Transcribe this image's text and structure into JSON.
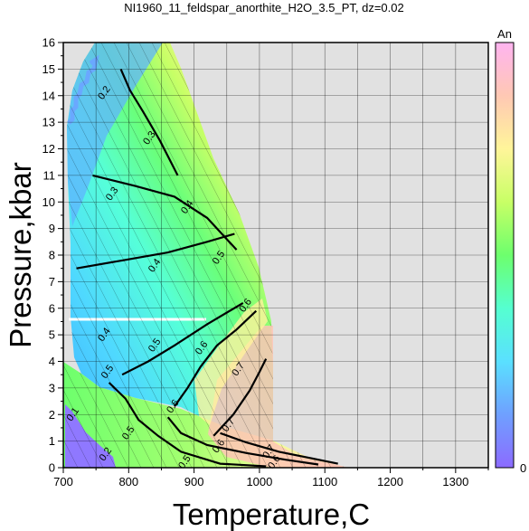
{
  "chart_data": {
    "type": "heatmap",
    "title": "NI1960_11_feldspar_anorthite_H2O_3.5_PT, dz=0.02",
    "xlabel": "Temperature,C",
    "ylabel": "Pressure,kbar",
    "xlim": [
      700,
      1350
    ],
    "ylim": [
      0,
      16
    ],
    "xticks": [
      700,
      800,
      900,
      1000,
      1100,
      1200,
      1300
    ],
    "yticks": [
      0,
      1,
      2,
      3,
      4,
      5,
      6,
      7,
      8,
      9,
      10,
      11,
      12,
      13,
      14,
      15,
      16
    ],
    "grid": true,
    "colorbar": {
      "label": "An",
      "min": 0,
      "max": 1,
      "min_label": "0",
      "position": "right",
      "colors": [
        "#8c6bff",
        "#6fa0ff",
        "#5ae0ff",
        "#55ffd0",
        "#6dff6d",
        "#c8ff66",
        "#fff59a",
        "#ffc8b4",
        "#ffb4f0"
      ]
    },
    "background_color": "#e1e1e1",
    "contour_lines": [
      {
        "level": "0.2",
        "points": [
          [
            788,
            15.0
          ],
          [
            802,
            14.2
          ],
          [
            822,
            13.4
          ],
          [
            848,
            12.3
          ],
          [
            875,
            11.0
          ]
        ]
      },
      {
        "level": "0.3",
        "points": [
          [
            745,
            11.0
          ],
          [
            810,
            10.6
          ],
          [
            870,
            10.2
          ],
          [
            920,
            9.4
          ],
          [
            965,
            8.2
          ]
        ]
      },
      {
        "level": "0.4",
        "points": [
          [
            720,
            7.5
          ],
          [
            790,
            7.8
          ],
          [
            860,
            8.1
          ],
          [
            920,
            8.5
          ],
          [
            962,
            8.8
          ]
        ]
      },
      {
        "level": "0.5",
        "points": [
          [
            790,
            3.5
          ],
          [
            830,
            4.0
          ],
          [
            870,
            4.6
          ],
          [
            920,
            5.4
          ],
          [
            975,
            6.2
          ]
        ]
      },
      {
        "level": "0.6",
        "points": [
          [
            870,
            2.3
          ],
          [
            890,
            3.0
          ],
          [
            910,
            3.8
          ],
          [
            935,
            4.6
          ],
          [
            965,
            5.2
          ],
          [
            995,
            5.9
          ]
        ]
      },
      {
        "level": "0.7",
        "points": [
          [
            930,
            1.2
          ],
          [
            960,
            2.0
          ],
          [
            985,
            2.9
          ],
          [
            1000,
            3.6
          ],
          [
            1010,
            4.1
          ]
        ]
      },
      {
        "level": "0.5",
        "points": [
          [
            770,
            3.2
          ],
          [
            795,
            2.6
          ],
          [
            815,
            1.8
          ],
          [
            845,
            1.2
          ],
          [
            880,
            0.6
          ],
          [
            940,
            0.15
          ],
          [
            1010,
            0.05
          ]
        ]
      },
      {
        "level": "0.6",
        "points": [
          [
            860,
            1.9
          ],
          [
            880,
            1.3
          ],
          [
            920,
            0.85
          ],
          [
            980,
            0.55
          ],
          [
            1040,
            0.3
          ],
          [
            1090,
            0.12
          ]
        ]
      },
      {
        "level": "0.7",
        "points": [
          [
            940,
            1.3
          ],
          [
            980,
            0.95
          ],
          [
            1030,
            0.6
          ],
          [
            1080,
            0.35
          ],
          [
            1120,
            0.15
          ]
        ]
      }
    ],
    "labels": [
      {
        "text": "0.2",
        "x": 763,
        "y": 14.1
      },
      {
        "text": "0.3",
        "x": 832,
        "y": 12.4
      },
      {
        "text": "0.3",
        "x": 775,
        "y": 10.3
      },
      {
        "text": "0.4",
        "x": 890,
        "y": 9.8
      },
      {
        "text": "0.4",
        "x": 840,
        "y": 7.6
      },
      {
        "text": "0.5",
        "x": 938,
        "y": 7.9
      },
      {
        "text": "0.6",
        "x": 979,
        "y": 6.1
      },
      {
        "text": "0.4",
        "x": 763,
        "y": 5.0
      },
      {
        "text": "0.5",
        "x": 840,
        "y": 4.6
      },
      {
        "text": "0.5",
        "x": 768,
        "y": 3.6
      },
      {
        "text": "0.6",
        "x": 912,
        "y": 4.5
      },
      {
        "text": "0.7",
        "x": 968,
        "y": 3.7
      },
      {
        "text": "0.6",
        "x": 868,
        "y": 2.3
      },
      {
        "text": "0.5",
        "x": 800,
        "y": 1.3
      },
      {
        "text": "0.7",
        "x": 953,
        "y": 1.6
      },
      {
        "text": "0.6",
        "x": 938,
        "y": 0.8
      },
      {
        "text": "0.7",
        "x": 1015,
        "y": 0.6
      },
      {
        "text": "0.6",
        "x": 1023,
        "y": 0.2
      },
      {
        "text": "0.5",
        "x": 886,
        "y": 0.2
      },
      {
        "text": "0.1",
        "x": 715,
        "y": 2.0
      },
      {
        "text": "0.2",
        "x": 765,
        "y": 0.5
      }
    ]
  }
}
